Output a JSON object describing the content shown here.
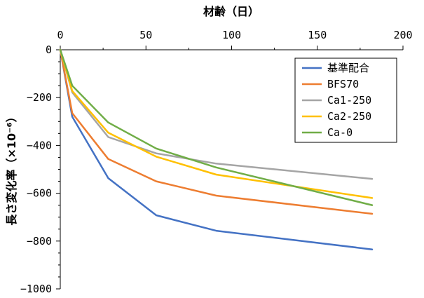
{
  "chart_data": {
    "type": "line",
    "xlabel": "材齢（日）",
    "ylabel": "長さ変化率（×10⁻⁶）",
    "xlim": [
      0,
      200
    ],
    "ylim": [
      -1000,
      0
    ],
    "x_ticks": [
      0,
      50,
      100,
      150,
      200
    ],
    "y_ticks": [
      0,
      -200,
      -400,
      -600,
      -800,
      -1000
    ],
    "x_axis_position": "top",
    "grid": false,
    "legend_position": "top-right",
    "x": [
      0,
      7,
      28,
      56,
      91,
      182
    ],
    "series": [
      {
        "name": "基準配合",
        "color": "#4472C4",
        "values": [
          0,
          -280,
          -537,
          -692,
          -757,
          -835
        ]
      },
      {
        "name": "BFS70",
        "color": "#ED7D31",
        "values": [
          0,
          -265,
          -457,
          -550,
          -610,
          -686
        ]
      },
      {
        "name": "Ca1-250",
        "color": "#A5A5A5",
        "values": [
          0,
          -178,
          -365,
          -433,
          -476,
          -540
        ]
      },
      {
        "name": "Ca2-250",
        "color": "#FFC000",
        "values": [
          0,
          -172,
          -347,
          -447,
          -522,
          -620
        ]
      },
      {
        "name": "Ca-0",
        "color": "#70AD47",
        "values": [
          0,
          -150,
          -304,
          -413,
          -492,
          -650
        ]
      }
    ]
  }
}
